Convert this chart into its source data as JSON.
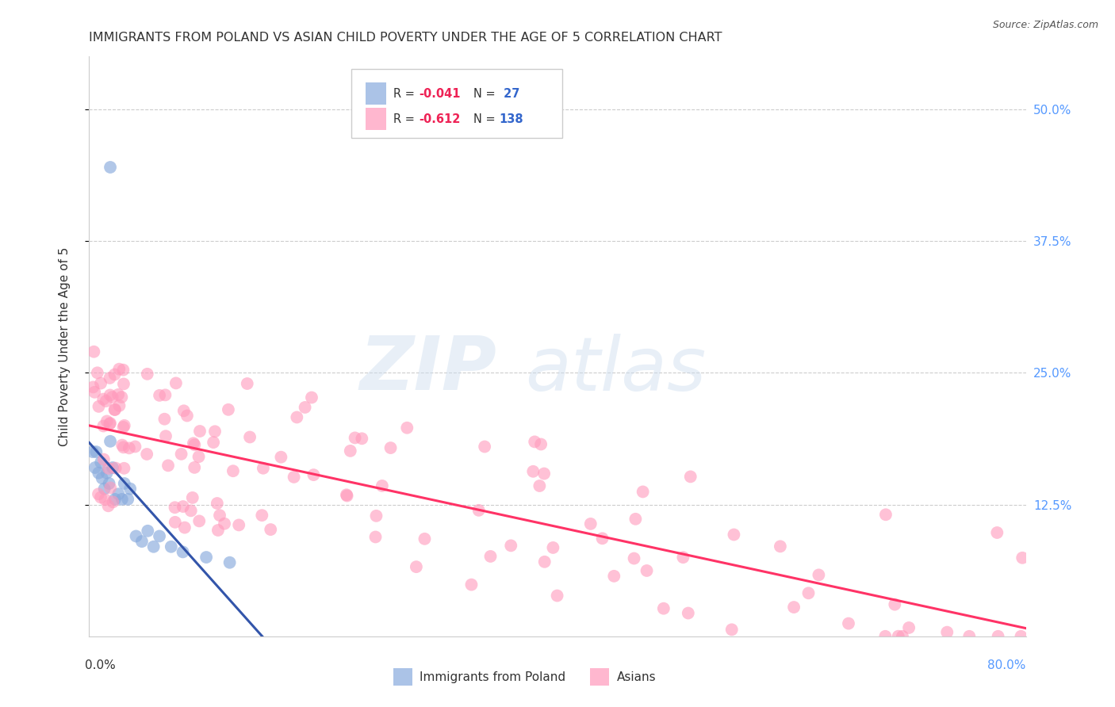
{
  "title": "IMMIGRANTS FROM POLAND VS ASIAN CHILD POVERTY UNDER THE AGE OF 5 CORRELATION CHART",
  "source": "Source: ZipAtlas.com",
  "ylabel": "Child Poverty Under the Age of 5",
  "color_blue": "#88AADD",
  "color_pink": "#FF99BB",
  "color_blue_line": "#3355AA",
  "color_pink_line": "#FF3366",
  "color_blue_dash": "#AACCEE",
  "r_blue": "-0.041",
  "n_blue": "27",
  "r_pink": "-0.612",
  "n_pink": "138",
  "label_blue": "Immigrants from Poland",
  "label_pink": "Asians",
  "xlim": [
    0.0,
    0.8
  ],
  "ylim": [
    0.0,
    0.55
  ],
  "ytick_vals": [
    0.125,
    0.25,
    0.375,
    0.5
  ],
  "ytick_labels": [
    "12.5%",
    "25.0%",
    "37.5%",
    "50.0%"
  ],
  "right_tick_color": "#5599FF",
  "grid_color": "#CCCCCC",
  "title_fontsize": 11.5,
  "source_fontsize": 9,
  "tick_label_fontsize": 11,
  "legend_fontsize": 11,
  "axis_label_fontsize": 11
}
